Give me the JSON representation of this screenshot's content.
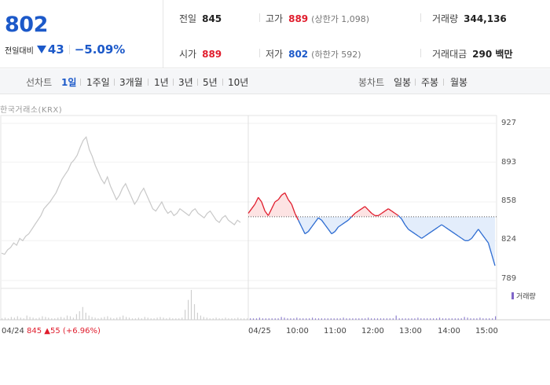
{
  "quote": {
    "price": "802",
    "diff_label": "전일대비",
    "diff_value": "43",
    "diff_direction": "down",
    "diff_percent": "−5.09%"
  },
  "stats": {
    "prev_close": {
      "label": "전일",
      "value": "845"
    },
    "high": {
      "label": "고가",
      "value": "889",
      "sub": "(상한가 1,098)"
    },
    "volume": {
      "label": "거래량",
      "value": "344,136"
    },
    "open": {
      "label": "시가",
      "value": "889"
    },
    "low": {
      "label": "저가",
      "value": "802",
      "sub": "(하한가 592)"
    },
    "amount": {
      "label": "거래대금",
      "value": "290 백만"
    }
  },
  "period_bar": {
    "line_label": "선차트",
    "line_periods": [
      "1일",
      "1주일",
      "3개월",
      "1년",
      "3년",
      "5년",
      "10년"
    ],
    "active_period": "1일",
    "candle_label": "봉차트",
    "candle_periods": [
      "일봉",
      "주봉",
      "월봉"
    ]
  },
  "chart_data": {
    "type": "line",
    "exchange_label": "한국거래소(KRX)",
    "y_ticks": [
      "927",
      "893",
      "858",
      "824",
      "789"
    ],
    "ylim": [
      789,
      927
    ],
    "reference_price": 845,
    "x_ticks": [
      "04/24",
      "04/25",
      "10:00",
      "11:00",
      "12:00",
      "13:00",
      "14:00",
      "15:00"
    ],
    "prev_day_info": {
      "date": "04/24",
      "close": "845",
      "change": "55",
      "change_pct": "(+6.96%)"
    },
    "volume_legend": "거래량",
    "prev_day_series": {
      "name": "04/24",
      "values": [
        813,
        812,
        816,
        818,
        822,
        820,
        826,
        824,
        828,
        830,
        834,
        838,
        842,
        846,
        852,
        855,
        858,
        862,
        866,
        872,
        878,
        882,
        886,
        892,
        895,
        899,
        906,
        912,
        915,
        904,
        898,
        890,
        884,
        878,
        874,
        880,
        872,
        866,
        860,
        864,
        870,
        874,
        868,
        862,
        856,
        860,
        866,
        870,
        864,
        858,
        852,
        850,
        854,
        858,
        852,
        848,
        850,
        846,
        848,
        852,
        850,
        848,
        846,
        850,
        852,
        848,
        846,
        844,
        848,
        850,
        846,
        842,
        840,
        844,
        846,
        842,
        840,
        838,
        842,
        840
      ]
    },
    "today_series": {
      "name": "04/25",
      "values": [
        848,
        852,
        856,
        862,
        858,
        850,
        846,
        852,
        858,
        860,
        864,
        866,
        860,
        856,
        848,
        842,
        836,
        830,
        832,
        836,
        840,
        844,
        842,
        838,
        834,
        830,
        832,
        836,
        838,
        840,
        842,
        845,
        848,
        850,
        852,
        854,
        851,
        848,
        846,
        846,
        848,
        850,
        852,
        850,
        848,
        846,
        843,
        838,
        834,
        832,
        830,
        828,
        826,
        828,
        830,
        832,
        834,
        836,
        838,
        836,
        834,
        832,
        830,
        828,
        826,
        824,
        824,
        826,
        830,
        834,
        830,
        826,
        822,
        812,
        802
      ]
    },
    "volume_values": [
      2,
      3,
      2,
      4,
      3,
      5,
      3,
      2,
      6,
      4,
      3,
      2,
      3,
      5,
      4,
      3,
      2,
      2,
      3,
      4,
      3,
      6,
      5,
      3,
      8,
      12,
      18,
      10,
      6,
      4,
      3,
      2,
      3,
      4,
      5,
      3,
      2,
      3,
      4,
      6,
      4,
      3,
      2,
      2,
      3,
      2,
      4,
      3,
      2,
      2,
      3,
      4,
      3,
      2,
      3,
      2,
      2,
      2,
      3,
      14,
      28,
      42,
      22,
      10,
      6,
      4,
      3,
      2,
      2,
      3,
      2,
      2,
      3,
      2,
      2,
      2,
      3,
      2,
      2,
      2,
      2,
      2,
      2,
      3,
      2,
      2,
      2,
      2,
      2,
      2,
      4,
      3,
      2,
      2,
      2,
      3,
      2,
      2,
      2,
      2,
      3,
      2,
      2,
      2,
      2,
      2,
      2,
      2,
      2,
      2,
      3,
      2,
      2,
      2,
      2,
      2,
      2,
      2,
      3,
      2,
      2,
      2,
      2,
      2,
      2,
      2,
      2,
      6,
      2,
      2,
      2,
      2,
      2,
      2,
      3,
      2,
      2,
      2,
      2,
      2,
      2,
      3,
      2,
      2,
      2,
      2,
      2,
      2,
      2,
      4,
      3,
      2,
      2,
      2,
      3,
      2,
      2,
      2,
      2,
      5
    ]
  }
}
